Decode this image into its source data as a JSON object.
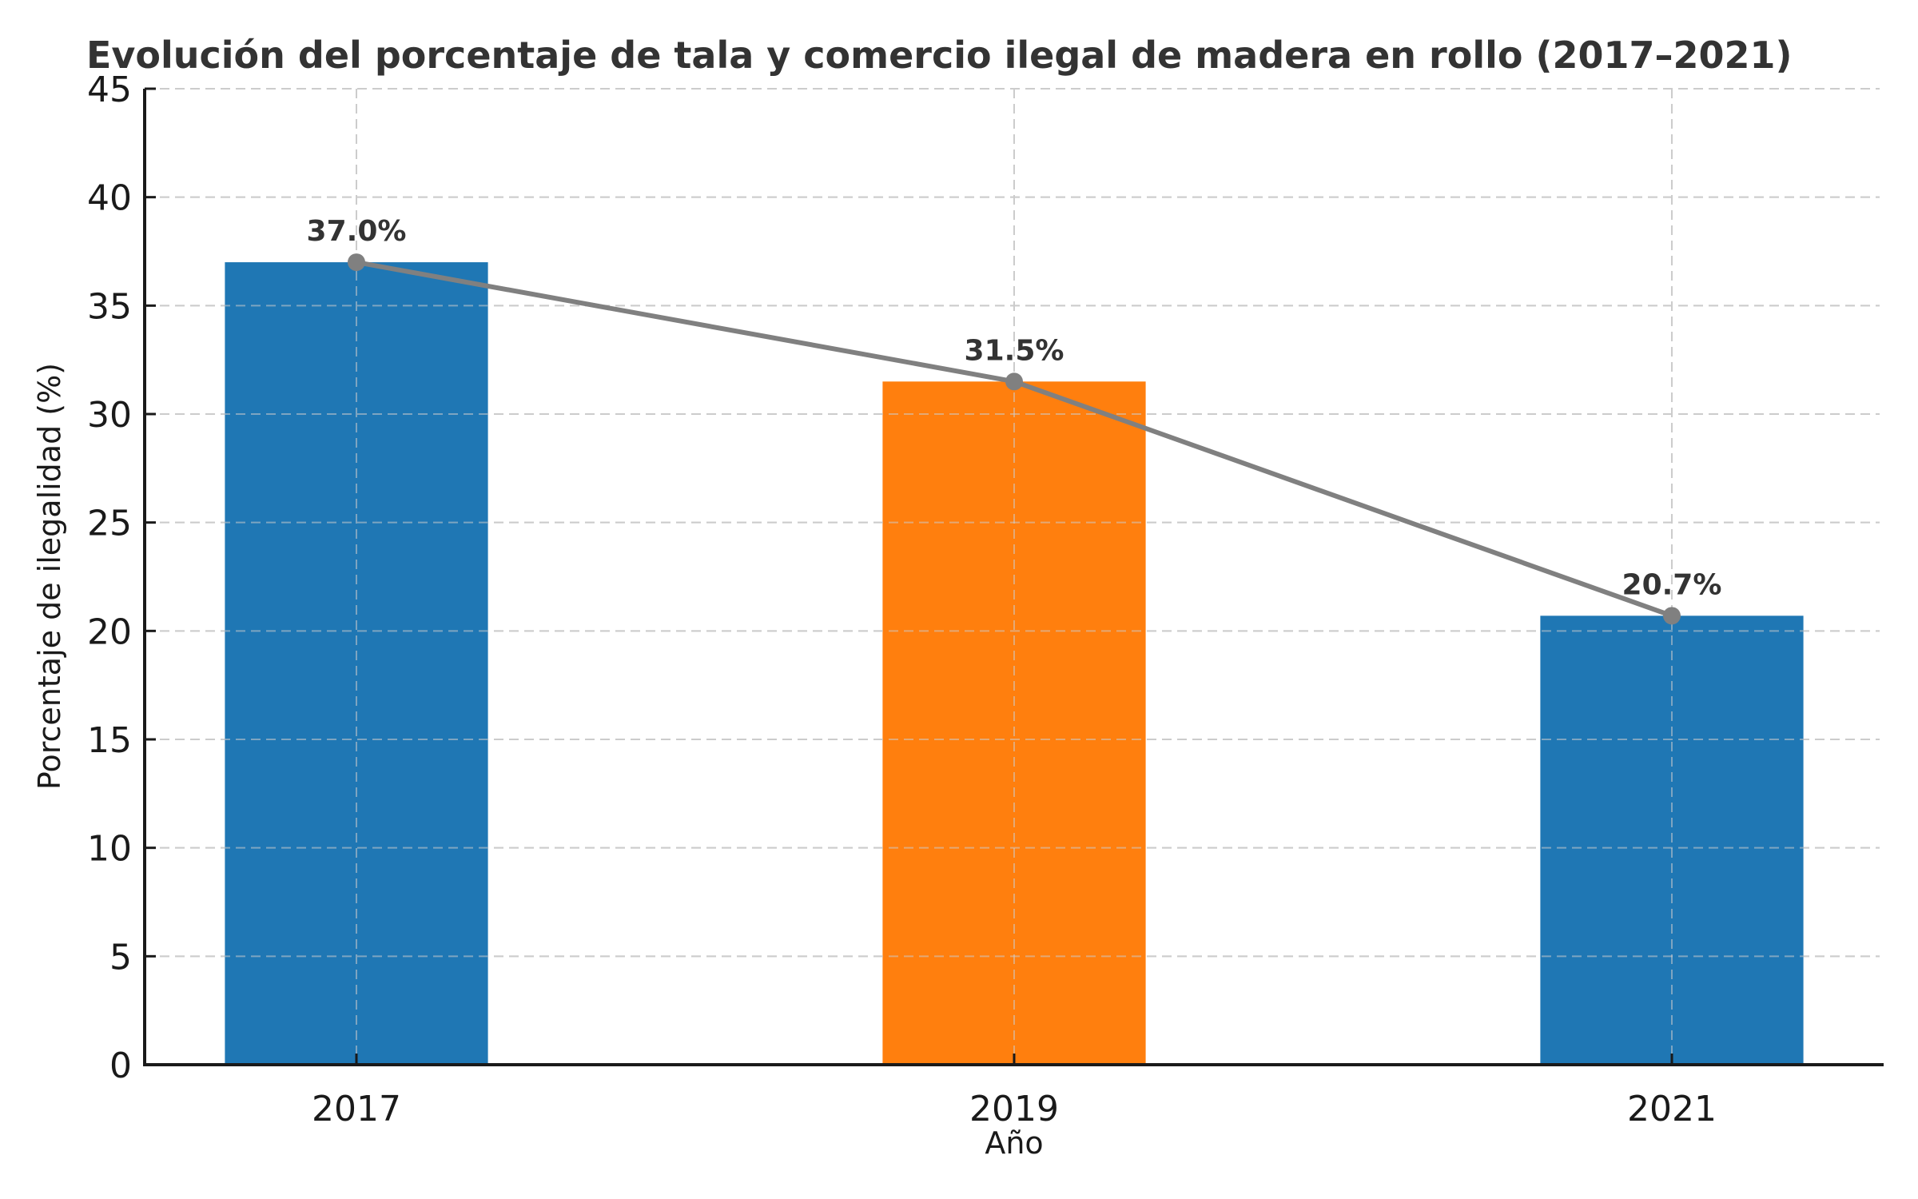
{
  "chart_data": {
    "type": "bar",
    "title": "Evolución del porcentaje de tala y comercio ilegal de madera en rollo (2017–2021)",
    "xlabel": "Año",
    "ylabel": "Porcentaje de ilegalidad (%)",
    "categories": [
      "2017",
      "2019",
      "2021"
    ],
    "values": [
      37.0,
      31.5,
      20.7
    ],
    "data_labels": [
      "37.0%",
      "31.5%",
      "20.7%"
    ],
    "bar_colors": [
      "#1f77b4",
      "#ff7f0e",
      "#1f77b4"
    ],
    "overlay_line": {
      "type": "line",
      "values": [
        37.0,
        31.5,
        20.7
      ],
      "color": "#808080",
      "marker": "circle"
    },
    "ylim": [
      0,
      45
    ],
    "yticks": [
      0,
      5,
      10,
      15,
      20,
      25,
      30,
      35,
      40,
      45
    ],
    "grid": true,
    "legend": "none"
  }
}
